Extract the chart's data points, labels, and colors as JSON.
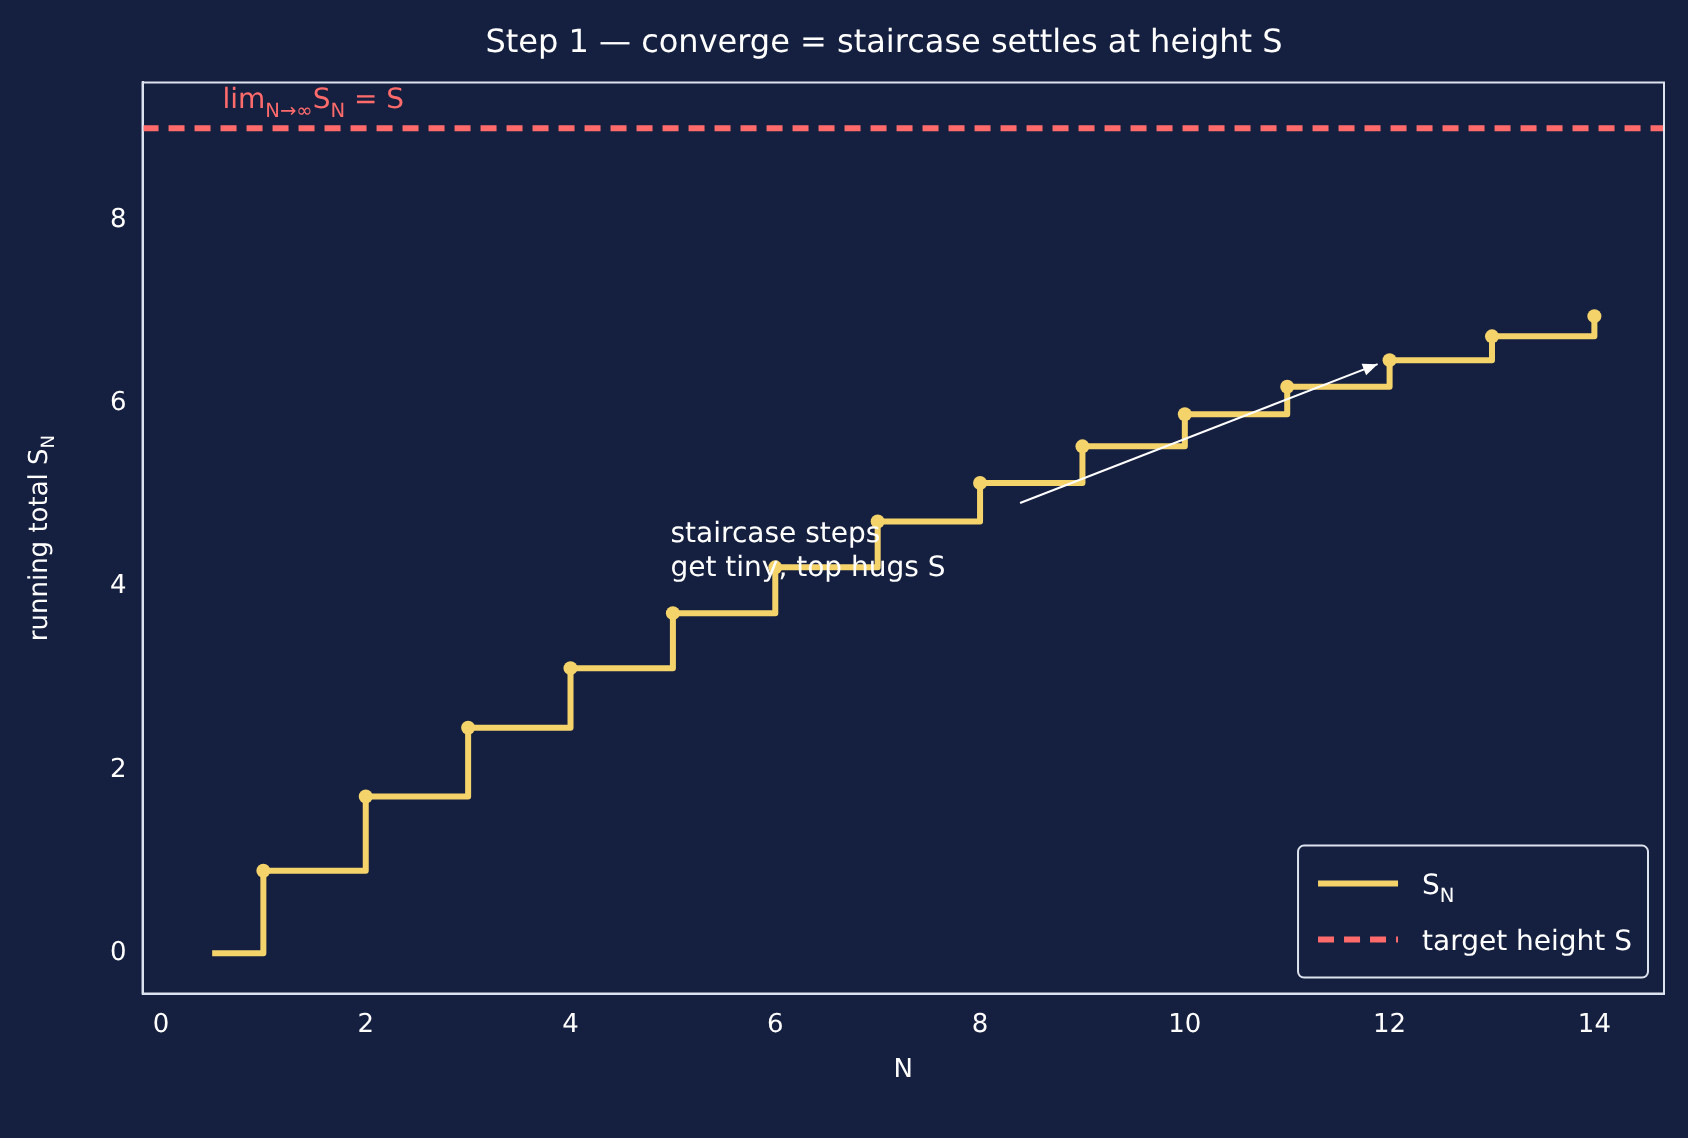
{
  "chart_data": {
    "type": "step",
    "title": "Step 1 — converge = staircase settles at height S",
    "xlabel": "N",
    "ylabel": "running total S$_{N}$",
    "series": [
      {
        "name": "S$_{N}$",
        "color": "#f5d36b",
        "x": [
          0.5,
          1,
          2,
          3,
          4,
          5,
          6,
          7,
          8,
          9,
          10,
          11,
          12,
          13,
          14
        ],
        "values": [
          0,
          0.9,
          1.71,
          2.46,
          3.11,
          3.71,
          4.21,
          4.71,
          5.13,
          5.53,
          5.88,
          6.18,
          6.47,
          6.73,
          6.95
        ]
      },
      {
        "name": "target height S",
        "type": "line",
        "color": "#ff6b6b",
        "line_style": "dashed",
        "marker": "none",
        "x": [
          -0.18,
          14.68
        ],
        "values": [
          9,
          9
        ]
      }
    ],
    "annotations": [
      {
        "text": "lim$_{N→∞}$S$_{N}$ = S",
        "x": 0.6,
        "y": 9
      },
      "staircase steps\nget tiny, top hugs S"
    ],
    "xlim": [
      -0.18,
      14.68
    ],
    "ylim": [
      -0.44,
      9.5
    ],
    "xticks": [
      0,
      2,
      4,
      6,
      8,
      10,
      12,
      14
    ],
    "yticks": [
      0,
      2,
      4,
      6,
      8
    ],
    "marker": "circle",
    "line_style": "solid",
    "grid": false,
    "legend": "bottom right"
  }
}
